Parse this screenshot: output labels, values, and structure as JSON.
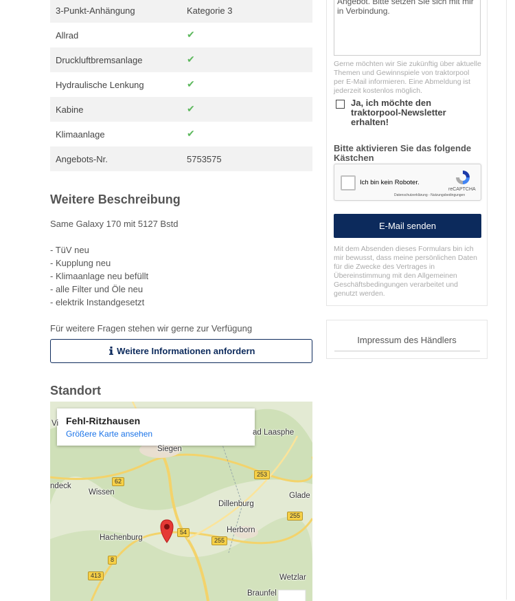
{
  "specs": {
    "rows": [
      [
        "3-Punkt-Anhängung",
        "Kategorie 3"
      ],
      [
        "Allrad",
        "✔"
      ],
      [
        "Druckluftbremsanlage",
        "✔"
      ],
      [
        "Hydraulische Lenkung",
        "✔"
      ],
      [
        "Kabine",
        "✔"
      ],
      [
        "Klimaanlage",
        "✔"
      ],
      [
        "Angebots-Nr.",
        "5753575"
      ]
    ]
  },
  "description": {
    "heading": "Weitere Beschreibung",
    "intro": "Same Galaxy 170 mit 5127 Bstd",
    "items": [
      "- TüV neu",
      "- Kupplung neu",
      "- Klimaanlage neu befüllt",
      "- alle Filter und Öle neu",
      "- elektrik Instandgesetzt"
    ],
    "closing": "Für weitere Fragen stehen wir gerne zur Verfügung",
    "button": "Weitere Informationen anfordern"
  },
  "location": {
    "heading": "Standort",
    "place": "Fehl-Ritzhausen",
    "link": "Größere Karte ansehen",
    "map_labels": [
      "Vi",
      "ad Laasphe",
      "Siegen",
      "ndeck",
      "Wissen",
      "Glade",
      "Dillenburg",
      "Hachenburg",
      "Herborn",
      "Wetzlar",
      "Braunfel"
    ],
    "road_numbers": [
      "62",
      "253",
      "255",
      "54",
      "255",
      "8",
      "413"
    ]
  },
  "contact_form": {
    "message_text": "Angebot. Bitte setzen Sie sich mit mir in Verbindung.",
    "newsletter_info": "Gerne möchten wir Sie zukünftig über aktuelle Themen und Gewinnspiele von traktorpool per E-Mail informieren. Eine Abmeldung ist jederzeit kostenlos möglich.",
    "newsletter_checkbox": "Ja, ich möchte den traktorpool-Newsletter erhalten!",
    "captcha_prompt": "Bitte aktivieren Sie das folgende Kästchen",
    "captcha_label": "Ich bin kein Roboter.",
    "captcha_brand": "reCAPTCHA",
    "captcha_links": "Datenschutzerklärung - Nutzungsbedingungen",
    "submit": "E-Mail senden",
    "disclaimer": "Mit dem Absenden dieses Formulars bin ich mir bewusst, dass meine persönlichen Daten für die Zwecke des Vertrages in Übereinstimmung mit den Allgemeinen Geschäftsbedingungen verarbeitet und genutzt werden."
  },
  "dealer_imprint": "Impressum des Händlers"
}
